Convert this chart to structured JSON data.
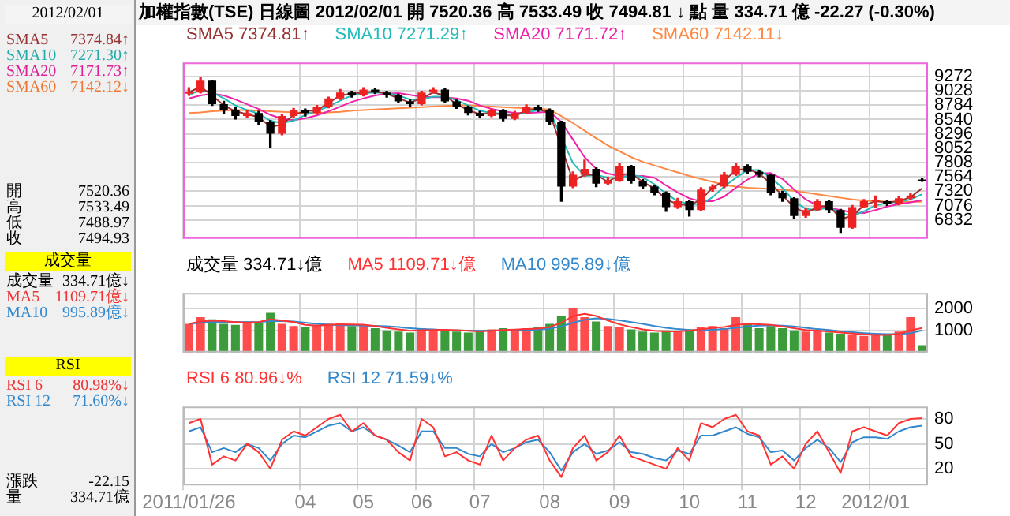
{
  "chart_data": [
    {
      "type": "other",
      "annotations": [
        "2012/02/01",
        "SMA5",
        "7374.84↑",
        "SMA10",
        "7271.30↑",
        "SMA20",
        "7171.73↑",
        "SMA60",
        "7142.12↓",
        "開",
        "7520.36",
        "高",
        "7533.49",
        "低",
        "7488.97",
        "收",
        "7494.93",
        "成交量",
        "成交量",
        "334.71億↓",
        "MA5",
        "1109.71億↓",
        "MA10",
        "995.89億↓",
        "RSI",
        "RSI 6",
        "80.98%↓",
        "RSI 12",
        "71.60%↓",
        "漲跌",
        "-22.15",
        "量",
        "334.71億"
      ]
    },
    {
      "type": "candlestick",
      "title": "加權指數(TSE) 日線圖 2012/02/01 開 7520.36 高 7533.49 收 7494.81 ↓ 點 量 334.71 億 -22.27 (-0.30%)",
      "legend": "top left",
      "grid": true,
      "marker": "none",
      "tick_labels": "y",
      "categories": [
        "2011/01/26",
        null,
        null,
        null,
        null,
        null,
        null,
        null,
        null,
        null,
        "04",
        null,
        null,
        null,
        null,
        "05",
        null,
        null,
        null,
        null,
        "06",
        null,
        null,
        null,
        null,
        "07",
        null,
        null,
        null,
        null,
        null,
        "08",
        null,
        null,
        null,
        null,
        null,
        "09",
        null,
        null,
        null,
        null,
        null,
        "10",
        null,
        null,
        null,
        null,
        "11",
        null,
        null,
        null,
        null,
        "12",
        null,
        null,
        null,
        null,
        null,
        "2012/01",
        null,
        null,
        null,
        null
      ],
      "ylim": [
        6510,
        9510
      ],
      "yticks": [
        6832,
        7076,
        7320,
        7564,
        7808,
        8052,
        8296,
        8540,
        8784,
        9028,
        9272
      ],
      "ohlc": [
        [
          8980,
          9080,
          8950,
          9000
        ],
        [
          9000,
          9250,
          8990,
          9200
        ],
        [
          9200,
          9210,
          8780,
          8800
        ],
        [
          8800,
          8850,
          8650,
          8700
        ],
        [
          8700,
          8750,
          8550,
          8600
        ],
        [
          8600,
          8700,
          8580,
          8650
        ],
        [
          8650,
          8680,
          8450,
          8500
        ],
        [
          8500,
          8520,
          8070,
          8300
        ],
        [
          8300,
          8620,
          8280,
          8600
        ],
        [
          8600,
          8730,
          8580,
          8700
        ],
        [
          8700,
          8720,
          8600,
          8650
        ],
        [
          8650,
          8780,
          8630,
          8750
        ],
        [
          8750,
          8920,
          8740,
          8900
        ],
        [
          8900,
          9050,
          8880,
          9000
        ],
        [
          9000,
          9020,
          8920,
          8950
        ],
        [
          8950,
          9080,
          8940,
          9050
        ],
        [
          9050,
          9070,
          8980,
          9000
        ],
        [
          9000,
          9020,
          8920,
          8950
        ],
        [
          8950,
          8970,
          8830,
          8850
        ],
        [
          8850,
          8870,
          8760,
          8800
        ],
        [
          8800,
          9020,
          8790,
          9000
        ],
        [
          9000,
          9080,
          8990,
          9050
        ],
        [
          9050,
          9060,
          8830,
          8850
        ],
        [
          8850,
          8870,
          8730,
          8750
        ],
        [
          8750,
          8770,
          8620,
          8650
        ],
        [
          8650,
          8680,
          8570,
          8600
        ],
        [
          8600,
          8720,
          8590,
          8700
        ],
        [
          8700,
          8710,
          8520,
          8550
        ],
        [
          8550,
          8680,
          8540,
          8650
        ],
        [
          8650,
          8790,
          8640,
          8750
        ],
        [
          8750,
          8780,
          8680,
          8700
        ],
        [
          8700,
          8720,
          8450,
          8500
        ],
        [
          8500,
          8510,
          7150,
          7400
        ],
        [
          7400,
          7650,
          7380,
          7600
        ],
        [
          7600,
          7850,
          7580,
          7700
        ],
        [
          7700,
          7720,
          7400,
          7450
        ],
        [
          7450,
          7560,
          7430,
          7500
        ],
        [
          7500,
          7800,
          7490,
          7750
        ],
        [
          7750,
          7760,
          7460,
          7500
        ],
        [
          7500,
          7520,
          7360,
          7400
        ],
        [
          7400,
          7420,
          7260,
          7300
        ],
        [
          7300,
          7310,
          6980,
          7050
        ],
        [
          7050,
          7200,
          7030,
          7150
        ],
        [
          7150,
          7170,
          6900,
          7000
        ],
        [
          7000,
          7380,
          6990,
          7350
        ],
        [
          7350,
          7430,
          7320,
          7400
        ],
        [
          7400,
          7640,
          7380,
          7600
        ],
        [
          7600,
          7790,
          7590,
          7750
        ],
        [
          7750,
          7770,
          7620,
          7650
        ],
        [
          7650,
          7680,
          7570,
          7600
        ],
        [
          7600,
          7610,
          7260,
          7300
        ],
        [
          7300,
          7320,
          7150,
          7200
        ],
        [
          7200,
          7210,
          6850,
          6900
        ],
        [
          6900,
          7040,
          6880,
          7000
        ],
        [
          7000,
          7180,
          6990,
          7150
        ],
        [
          7150,
          7160,
          6960,
          7000
        ],
        [
          7000,
          7010,
          6620,
          6700
        ],
        [
          6700,
          7080,
          6690,
          7050
        ],
        [
          7050,
          7180,
          7040,
          7150
        ],
        [
          7150,
          7240,
          7050,
          7160
        ],
        [
          7150,
          7170,
          7080,
          7100
        ],
        [
          7100,
          7230,
          7090,
          7200
        ],
        [
          7200,
          7280,
          7180,
          7250
        ],
        [
          7520.36,
          7533.49,
          7488.97,
          7494.81
        ]
      ],
      "series": [
        {
          "name": "SMA5 7374.81↑",
          "type": "line",
          "color": "#993333",
          "values": [
            9000,
            9100,
            8950,
            8780,
            8680,
            8630,
            8580,
            8420,
            8450,
            8620,
            8680,
            8700,
            8820,
            8950,
            8980,
            9000,
            9020,
            8980,
            8900,
            8830,
            8900,
            9000,
            8950,
            8800,
            8700,
            8630,
            8650,
            8620,
            8600,
            8700,
            8720,
            8650,
            null,
            7500,
            7600,
            7600,
            7480,
            7600,
            7620,
            7480,
            7370,
            7180,
            7100,
            7080,
            7180,
            7380,
            7500,
            7680,
            7700,
            7620,
            7450,
            7250,
            7050,
            6950,
            7050,
            7080,
            6850,
            6900,
            7080,
            7150,
            7130,
            7150,
            7220,
            7370
          ]
        },
        {
          "name": "SMA10 7271.29↑",
          "type": "line",
          "color": "#22bbbb",
          "values": [
            8950,
            9050,
            9000,
            8900,
            8780,
            8700,
            8640,
            8520,
            8480,
            8520,
            8620,
            8690,
            8760,
            8860,
            8950,
            8990,
            9000,
            8990,
            8950,
            8880,
            8880,
            8930,
            8930,
            8870,
            8780,
            8690,
            8650,
            8640,
            8620,
            8660,
            8700,
            8680,
            null,
            7800,
            7580,
            7600,
            7550,
            7540,
            7600,
            7560,
            7440,
            7280,
            7150,
            7100,
            7100,
            7220,
            7400,
            7550,
            7680,
            7680,
            7550,
            7380,
            7150,
            7020,
            7000,
            7050,
            6950,
            6900,
            6980,
            7080,
            7120,
            7140,
            7180,
            7270
          ]
        },
        {
          "name": "SMA20 7171.72↑",
          "type": "line",
          "color": "#ee22aa",
          "values": [
            8900,
            8950,
            8980,
            8950,
            8880,
            8800,
            8720,
            8620,
            8550,
            8530,
            8560,
            8610,
            8680,
            8760,
            8840,
            8900,
            8950,
            8980,
            8990,
            8960,
            8930,
            8920,
            8920,
            8900,
            8860,
            8780,
            8720,
            8680,
            8650,
            8650,
            8660,
            8670,
            8500,
            8200,
            7900,
            7700,
            7620,
            7580,
            7570,
            7580,
            7550,
            7420,
            7300,
            7200,
            7150,
            7150,
            7230,
            7380,
            7520,
            7620,
            7630,
            7530,
            7350,
            7180,
            7080,
            7040,
            7000,
            6960,
            6950,
            7000,
            7060,
            7100,
            7130,
            7170
          ]
        },
        {
          "name": "SMA60 7142.11↓",
          "type": "line",
          "color": "#ff8844",
          "values": [
            8650,
            8660,
            8680,
            8690,
            8700,
            8700,
            8690,
            8680,
            8670,
            8660,
            8650,
            8650,
            8660,
            8670,
            8690,
            8700,
            8710,
            8720,
            8730,
            8740,
            8750,
            8760,
            8770,
            8780,
            8780,
            8770,
            8760,
            8750,
            8740,
            8730,
            8720,
            8710,
            8600,
            8480,
            8350,
            8220,
            8100,
            8000,
            7900,
            7820,
            7760,
            7700,
            7640,
            7580,
            7530,
            7480,
            7430,
            7400,
            7380,
            7370,
            7360,
            7350,
            7330,
            7300,
            7270,
            7240,
            7210,
            7180,
            7160,
            7150,
            7140,
            7140,
            7140,
            7140
          ]
        }
      ]
    },
    {
      "type": "bar",
      "legend": "top left",
      "grid": true,
      "marker": "none",
      "tick_labels": "y",
      "categories": [
        "2011/01/26",
        null,
        null,
        null,
        null,
        null,
        null,
        null,
        null,
        null,
        "04",
        null,
        null,
        null,
        null,
        "05",
        null,
        null,
        null,
        null,
        "06",
        null,
        null,
        null,
        null,
        "07",
        null,
        null,
        null,
        null,
        null,
        "08",
        null,
        null,
        null,
        null,
        null,
        "09",
        null,
        null,
        null,
        null,
        null,
        "10",
        null,
        null,
        null,
        null,
        "11",
        null,
        null,
        null,
        null,
        "12",
        null,
        null,
        null,
        null,
        null,
        "2012/01",
        null,
        null,
        null,
        null
      ],
      "ylim": [
        0,
        2700
      ],
      "yticks": [
        1000,
        2000
      ],
      "series": [
        {
          "name": "成交量 334.71↓億",
          "type": "bar",
          "colors": [
            "#ff4d4d",
            "#ff4d4d",
            "#3c9c3c",
            "#3c9c3c",
            "#3c9c3c",
            "#ff4d4d",
            "#3c9c3c",
            "#3c9c3c",
            "#ff4d4d",
            "#ff4d4d",
            "#3c9c3c",
            "#ff4d4d",
            "#ff4d4d",
            "#ff4d4d",
            "#3c9c3c",
            "#ff4d4d",
            "#3c9c3c",
            "#3c9c3c",
            "#3c9c3c",
            "#3c9c3c",
            "#ff4d4d",
            "#ff4d4d",
            "#3c9c3c",
            "#3c9c3c",
            "#3c9c3c",
            "#3c9c3c",
            "#ff4d4d",
            "#3c9c3c",
            "#ff4d4d",
            "#ff4d4d",
            "#3c9c3c",
            "#3c9c3c",
            "#3c9c3c",
            "#ff4d4d",
            "#ff4d4d",
            "#3c9c3c",
            "#ff4d4d",
            "#ff4d4d",
            "#3c9c3c",
            "#3c9c3c",
            "#3c9c3c",
            "#3c9c3c",
            "#ff4d4d",
            "#3c9c3c",
            "#ff4d4d",
            "#ff4d4d",
            "#ff4d4d",
            "#ff4d4d",
            "#3c9c3c",
            "#3c9c3c",
            "#3c9c3c",
            "#3c9c3c",
            "#3c9c3c",
            "#ff4d4d",
            "#ff4d4d",
            "#3c9c3c",
            "#3c9c3c",
            "#ff4d4d",
            "#ff4d4d",
            "#ff4d4d",
            "#3c9c3c",
            "#ff4d4d",
            "#ff4d4d",
            "#3c9c3c"
          ],
          "values": [
            1300,
            1600,
            1500,
            1300,
            1250,
            1400,
            1350,
            1800,
            1300,
            1200,
            1150,
            1250,
            1300,
            1350,
            1200,
            1250,
            1100,
            1000,
            950,
            900,
            1100,
            1050,
            1000,
            950,
            900,
            1000,
            1050,
            1100,
            1000,
            1100,
            1150,
            1300,
            1650,
            2000,
            1600,
            1400,
            1200,
            1150,
            1050,
            950,
            900,
            1000,
            950,
            1050,
            1150,
            1200,
            1100,
            1600,
            1300,
            1100,
            1200,
            1100,
            1000,
            950,
            1000,
            900,
            850,
            800,
            750,
            800,
            850,
            950,
            1600,
            330
          ]
        },
        {
          "name": "MA5 1109.71↓億",
          "type": "line",
          "color": "#ff3333",
          "values": [
            1300,
            1400,
            1450,
            1420,
            1380,
            1350,
            1380,
            1500,
            1450,
            1380,
            1250,
            1220,
            1250,
            1280,
            1270,
            1260,
            1200,
            1120,
            1050,
            980,
            1000,
            1020,
            1030,
            1010,
            980,
            960,
            980,
            1020,
            1040,
            1060,
            1080,
            1150,
            1350,
            1650,
            1750,
            1650,
            1450,
            1280,
            1150,
            1050,
            980,
            960,
            960,
            990,
            1050,
            1120,
            1150,
            1250,
            1300,
            1280,
            1250,
            1180,
            1100,
            1020,
            990,
            950,
            900,
            860,
            820,
            800,
            800,
            840,
            1000,
            1110
          ]
        },
        {
          "name": "MA10 995.89↓億",
          "type": "line",
          "color": "#3388cc",
          "values": [
            1300,
            1350,
            1380,
            1390,
            1390,
            1380,
            1380,
            1420,
            1420,
            1400,
            1350,
            1300,
            1260,
            1230,
            1240,
            1220,
            1210,
            1190,
            1150,
            1100,
            1060,
            1050,
            1010,
            1000,
            990,
            980,
            990,
            1000,
            1010,
            1020,
            1040,
            1080,
            1180,
            1350,
            1480,
            1550,
            1520,
            1460,
            1380,
            1300,
            1200,
            1120,
            1060,
            1020,
            1010,
            1030,
            1060,
            1120,
            1180,
            1220,
            1230,
            1220,
            1180,
            1120,
            1060,
            1020,
            960,
            920,
            880,
            850,
            830,
            830,
            880,
            1000
          ]
        }
      ]
    },
    {
      "type": "line",
      "legend": "top left",
      "grid": true,
      "marker": "none",
      "categories": [
        "2011/01/26",
        null,
        null,
        null,
        null,
        null,
        null,
        null,
        null,
        null,
        "04",
        null,
        null,
        null,
        null,
        "05",
        null,
        null,
        null,
        null,
        "06",
        null,
        null,
        null,
        null,
        "07",
        null,
        null,
        null,
        null,
        null,
        "08",
        null,
        null,
        null,
        null,
        null,
        "09",
        null,
        null,
        null,
        null,
        null,
        "10",
        null,
        null,
        null,
        null,
        "11",
        null,
        null,
        null,
        null,
        "12",
        null,
        null,
        null,
        null,
        null,
        "2012/01",
        null,
        null,
        null,
        null
      ],
      "ylim": [
        0,
        95
      ],
      "yticks": [
        20,
        50,
        80
      ],
      "series": [
        {
          "name": "RSI 6 80.96↓%",
          "color": "#ff3333",
          "values": [
            75,
            80,
            25,
            35,
            30,
            50,
            40,
            20,
            55,
            65,
            60,
            70,
            80,
            85,
            65,
            75,
            60,
            55,
            40,
            30,
            80,
            70,
            35,
            40,
            30,
            25,
            60,
            30,
            45,
            55,
            60,
            30,
            10,
            45,
            60,
            30,
            40,
            60,
            35,
            30,
            25,
            20,
            45,
            30,
            75,
            70,
            80,
            85,
            65,
            60,
            25,
            35,
            20,
            50,
            65,
            40,
            15,
            65,
            70,
            65,
            60,
            75,
            80,
            81
          ]
        },
        {
          "name": "RSI 12 71.59↓%",
          "color": "#3388cc",
          "values": [
            65,
            70,
            40,
            45,
            40,
            50,
            45,
            30,
            50,
            60,
            58,
            65,
            72,
            75,
            65,
            70,
            60,
            55,
            48,
            40,
            65,
            65,
            45,
            45,
            38,
            35,
            50,
            40,
            45,
            52,
            55,
            40,
            18,
            40,
            50,
            38,
            42,
            52,
            40,
            38,
            33,
            30,
            42,
            38,
            60,
            60,
            65,
            70,
            62,
            58,
            40,
            42,
            30,
            45,
            55,
            45,
            28,
            52,
            58,
            58,
            56,
            65,
            70,
            72
          ]
        }
      ]
    }
  ]
}
